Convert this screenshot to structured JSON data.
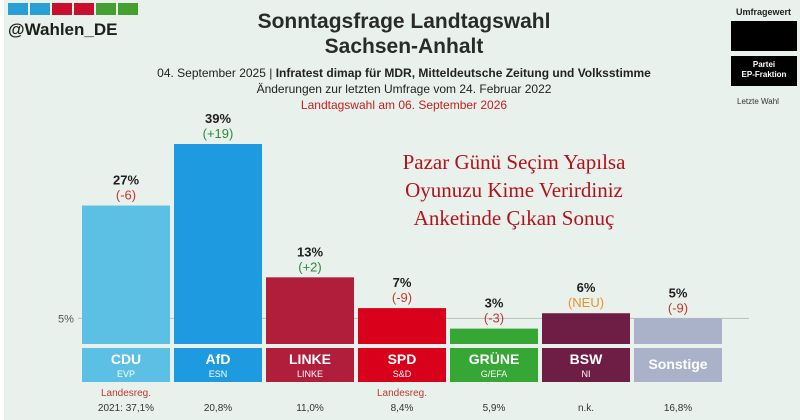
{
  "header": {
    "handle": "@Wahlen_DE",
    "title_line1": "Sonntagsfrage Landtagswahl",
    "title_line2": "Sachsen-Anhalt",
    "date": "04. September 2025",
    "source": "Infratest dimap für MDR, Mitteldeutsche Zeitung und Volksstimme",
    "change_note": "Änderungen zur letzten Umfrage vom 24. Februar 2022",
    "election_note": "Landtagswahl am 06. September 2026",
    "brand_colors": [
      "#2a9fd6",
      "#2a9fd6",
      "#c8102e",
      "#c8102e",
      "#46a030",
      "#46a030"
    ]
  },
  "legend": {
    "poll_label": "Umfragewert",
    "party_label": "Partei",
    "faction_label": "EP-Fraktion",
    "last_election_label": "Letzte Wahl"
  },
  "overlay_text": [
    "Pazar Günü Seçim Yapılsa",
    "Oyunuzu Kime Verirdiniz",
    "Anketinde Çıkan Sonuç"
  ],
  "chart_data": {
    "type": "bar",
    "threshold_label": "5%",
    "threshold_value": 5,
    "ylim": [
      0,
      39
    ],
    "categories": [
      "CDU",
      "AfD",
      "LINKE",
      "SPD",
      "GRÜNE",
      "BSW",
      "Sonstige"
    ],
    "factions": [
      "EVP",
      "ESN",
      "LINKE",
      "S&D",
      "G/EFA",
      "NI",
      ""
    ],
    "values": [
      27,
      39,
      13,
      7,
      3,
      6,
      5
    ],
    "value_labels": [
      "27%",
      "39%",
      "13%",
      "7%",
      "3%",
      "6%",
      "5%"
    ],
    "changes": [
      "(-6)",
      "(+19)",
      "(+2)",
      "(-9)",
      "(-3)",
      "(NEU)",
      "(-9)"
    ],
    "change_colors": [
      "#c0392b",
      "#2e8b3a",
      "#2e8b3a",
      "#c0392b",
      "#c0392b",
      "#e8912b",
      "#c0392b"
    ],
    "bar_colors": [
      "#5bc0e3",
      "#1e9be0",
      "#b01e3c",
      "#d9001b",
      "#36a635",
      "#6e1d45",
      "#a9b2c8"
    ],
    "label_bg_colors": [
      "#5bc0e3",
      "#1e9be0",
      "#b01e3c",
      "#d9001b",
      "#36a635",
      "#6e1d45",
      "#a9b2c8"
    ],
    "last_election": [
      "2021: 37,1%",
      "20,8%",
      "11,0%",
      "8,4%",
      "5,9%",
      "n.k.",
      "16,8%"
    ],
    "government_note": "Landesreg.",
    "government_parties": [
      "CDU",
      "SPD"
    ]
  }
}
